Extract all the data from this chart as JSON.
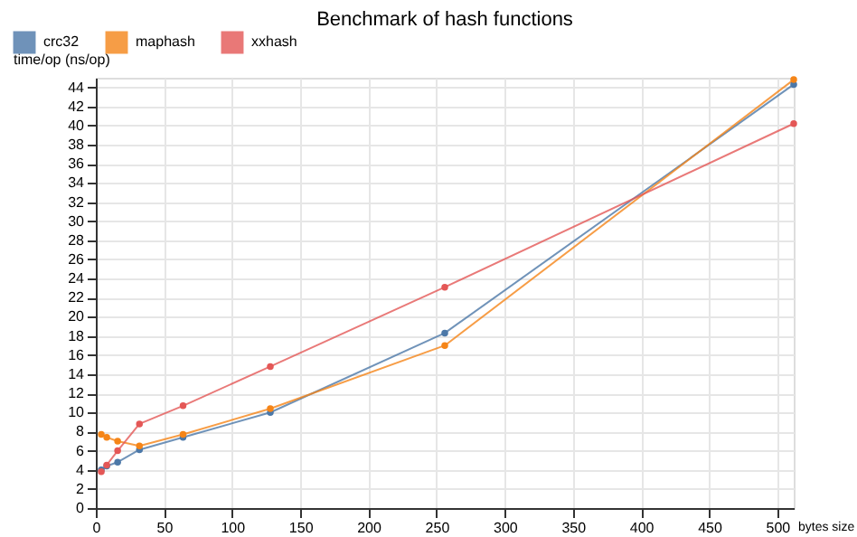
{
  "chart_data": {
    "type": "line",
    "title": "Benchmark of hash functions",
    "xlabel": "bytes size",
    "ylabel": "time/op (ns/op)",
    "x": [
      4,
      8,
      16,
      32,
      64,
      128,
      256,
      512
    ],
    "series": [
      {
        "name": "crc32",
        "color": "#4c78a8",
        "values": [
          4.0,
          4.4,
          4.8,
          6.1,
          7.4,
          10.0,
          18.3,
          44.3
        ]
      },
      {
        "name": "maphash",
        "color": "#f58518",
        "values": [
          7.7,
          7.4,
          7.0,
          6.5,
          7.7,
          10.4,
          17.0,
          44.8
        ]
      },
      {
        "name": "xxhash",
        "color": "#e45756",
        "values": [
          3.8,
          4.5,
          6.0,
          8.8,
          10.7,
          14.8,
          23.1,
          40.2
        ]
      }
    ],
    "xlim": [
      0,
      512
    ],
    "xticks": [
      0,
      50,
      100,
      150,
      200,
      250,
      300,
      350,
      400,
      450,
      500
    ],
    "ylim": [
      0,
      45
    ],
    "yticks": [
      0,
      2,
      4,
      6,
      8,
      10,
      12,
      14,
      16,
      18,
      20,
      22,
      24,
      26,
      28,
      30,
      32,
      34,
      36,
      38,
      40,
      42,
      44
    ],
    "grid": true,
    "legend": "top left",
    "marker": "circle",
    "line_style": "solid"
  }
}
